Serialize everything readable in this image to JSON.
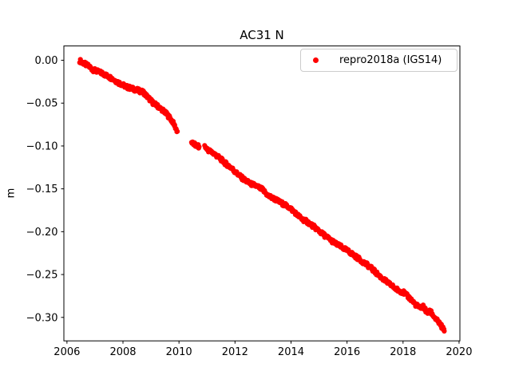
{
  "figure": {
    "background": "#ffffff",
    "text_color": "#000000",
    "spine_color": "#000000",
    "legend_border_color": "#cccccc"
  },
  "chart_data": {
    "type": "scatter",
    "title": "AC31 N",
    "xlabel": "",
    "ylabel": "m",
    "grid": false,
    "legend": {
      "position": "upper right",
      "entries": [
        {
          "label": "repro2018a (IGS14)",
          "marker": "dot",
          "color": "#ff0000"
        }
      ]
    },
    "xlim": [
      2005.89,
      2020.03
    ],
    "ylim": [
      -0.3274,
      0.0167
    ],
    "xticks": [
      2006,
      2008,
      2010,
      2012,
      2014,
      2016,
      2018,
      2020
    ],
    "xtick_labels": [
      "2006",
      "2008",
      "2010",
      "2012",
      "2014",
      "2016",
      "2018",
      "2020"
    ],
    "yticks": [
      0.0,
      -0.05,
      -0.1,
      -0.15,
      -0.2,
      -0.25,
      -0.3
    ],
    "ytick_labels": [
      "0.00",
      "−0.05",
      "−0.10",
      "−0.15",
      "−0.20",
      "−0.25",
      "−0.30"
    ],
    "marker": {
      "shape": "circle",
      "color": "#ff0000",
      "radius_px": 3.1,
      "band_jitter_m": 0.0045,
      "sample_step_yr": 0.018
    },
    "series": [
      {
        "name": "repro2018a (IGS14)",
        "color": "#ff0000",
        "segments": [
          [
            [
              2006.46,
              -0.0005
            ],
            [
              2006.62,
              -0.004
            ],
            [
              2006.78,
              -0.007
            ],
            [
              2006.92,
              -0.011
            ],
            [
              2007.08,
              -0.013
            ],
            [
              2007.25,
              -0.015
            ],
            [
              2007.42,
              -0.018
            ],
            [
              2007.6,
              -0.021
            ],
            [
              2007.78,
              -0.025
            ],
            [
              2007.95,
              -0.028
            ],
            [
              2008.12,
              -0.031
            ],
            [
              2008.32,
              -0.033
            ],
            [
              2008.52,
              -0.035
            ],
            [
              2008.72,
              -0.037
            ],
            [
              2008.88,
              -0.043
            ],
            [
              2009.05,
              -0.049
            ],
            [
              2009.25,
              -0.054
            ],
            [
              2009.45,
              -0.059
            ],
            [
              2009.62,
              -0.065
            ],
            [
              2009.78,
              -0.072
            ],
            [
              2009.94,
              -0.083
            ]
          ],
          [
            [
              2010.45,
              -0.096
            ],
            [
              2010.58,
              -0.099
            ],
            [
              2010.72,
              -0.101
            ]
          ],
          [
            [
              2010.92,
              -0.101
            ],
            [
              2011.05,
              -0.105
            ],
            [
              2011.25,
              -0.109
            ],
            [
              2011.45,
              -0.114
            ],
            [
              2011.65,
              -0.12
            ],
            [
              2011.88,
              -0.126
            ],
            [
              2012.1,
              -0.133
            ],
            [
              2012.32,
              -0.139
            ],
            [
              2012.55,
              -0.144
            ],
            [
              2012.78,
              -0.147
            ],
            [
              2012.98,
              -0.151
            ],
            [
              2013.18,
              -0.158
            ],
            [
              2013.42,
              -0.162
            ],
            [
              2013.68,
              -0.167
            ],
            [
              2013.95,
              -0.172
            ],
            [
              2014.15,
              -0.178
            ],
            [
              2014.38,
              -0.185
            ],
            [
              2014.6,
              -0.189
            ],
            [
              2014.85,
              -0.195
            ],
            [
              2015.1,
              -0.202
            ],
            [
              2015.35,
              -0.208
            ],
            [
              2015.6,
              -0.214
            ],
            [
              2015.85,
              -0.219
            ],
            [
              2016.1,
              -0.224
            ],
            [
              2016.35,
              -0.23
            ],
            [
              2016.6,
              -0.236
            ],
            [
              2016.85,
              -0.242
            ],
            [
              2017.1,
              -0.25
            ],
            [
              2017.35,
              -0.257
            ],
            [
              2017.6,
              -0.263
            ],
            [
              2017.8,
              -0.268
            ],
            [
              2018.02,
              -0.271
            ],
            [
              2018.22,
              -0.277
            ],
            [
              2018.45,
              -0.285
            ],
            [
              2018.6,
              -0.289
            ],
            [
              2018.72,
              -0.287
            ],
            [
              2018.86,
              -0.295
            ],
            [
              2018.98,
              -0.293
            ],
            [
              2019.1,
              -0.299
            ],
            [
              2019.22,
              -0.304
            ],
            [
              2019.35,
              -0.309
            ],
            [
              2019.47,
              -0.316
            ]
          ]
        ]
      }
    ]
  }
}
